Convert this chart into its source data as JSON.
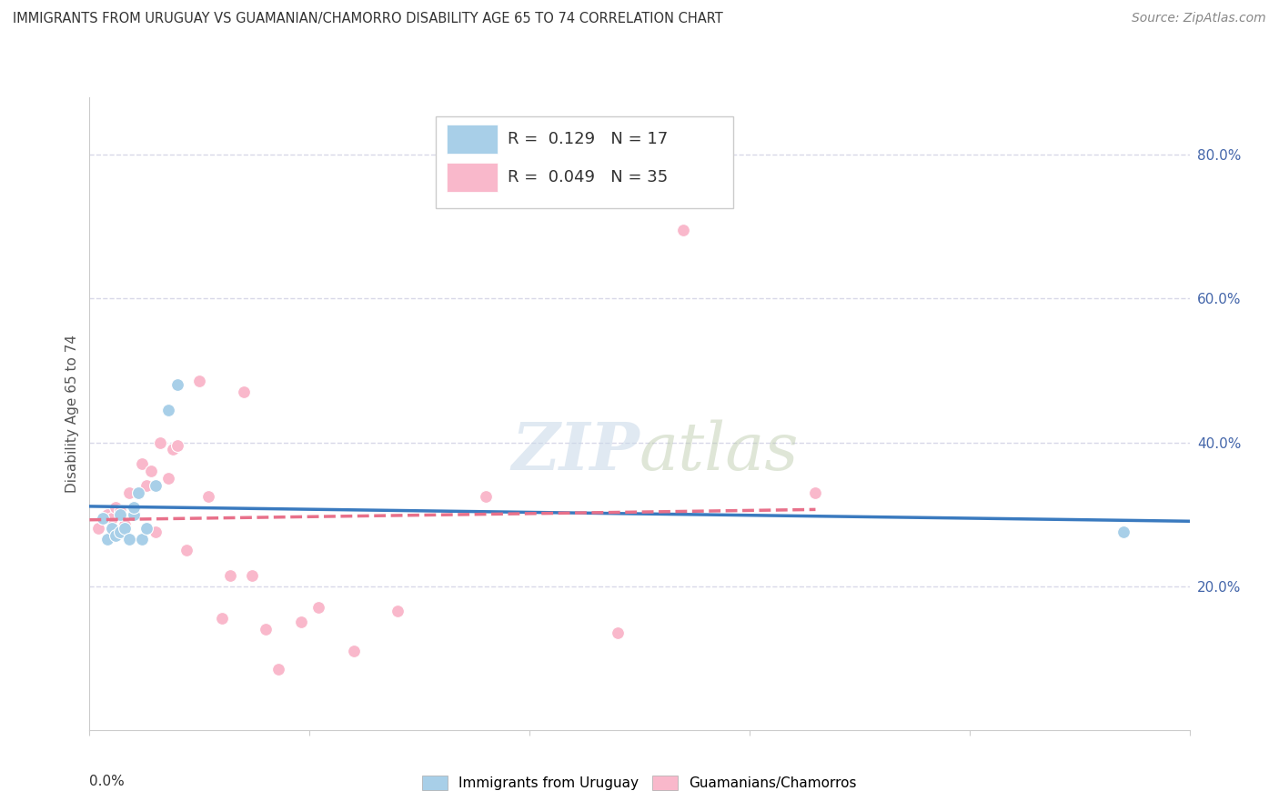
{
  "title": "IMMIGRANTS FROM URUGUAY VS GUAMANIAN/CHAMORRO DISABILITY AGE 65 TO 74 CORRELATION CHART",
  "source": "Source: ZipAtlas.com",
  "ylabel": "Disability Age 65 to 74",
  "yaxis_values": [
    0.2,
    0.4,
    0.6,
    0.8
  ],
  "xlim": [
    0.0,
    0.25
  ],
  "ylim": [
    0.0,
    0.88
  ],
  "legend_r1": "0.129",
  "legend_n1": "17",
  "legend_r2": "0.049",
  "legend_n2": "35",
  "color_uruguay": "#a8cfe8",
  "color_guamanian": "#f9b8cb",
  "line_color_uruguay": "#3a7abf",
  "line_color_guamanian": "#e8708a",
  "scatter_uruguay_x": [
    0.003,
    0.004,
    0.005,
    0.006,
    0.007,
    0.007,
    0.008,
    0.009,
    0.01,
    0.01,
    0.011,
    0.012,
    0.013,
    0.015,
    0.018,
    0.02,
    0.235
  ],
  "scatter_uruguay_y": [
    0.295,
    0.265,
    0.28,
    0.27,
    0.275,
    0.3,
    0.28,
    0.265,
    0.3,
    0.31,
    0.33,
    0.265,
    0.28,
    0.34,
    0.445,
    0.48,
    0.275
  ],
  "scatter_guamanian_x": [
    0.002,
    0.003,
    0.004,
    0.005,
    0.006,
    0.007,
    0.008,
    0.009,
    0.01,
    0.011,
    0.012,
    0.013,
    0.014,
    0.015,
    0.016,
    0.018,
    0.019,
    0.02,
    0.022,
    0.025,
    0.027,
    0.03,
    0.032,
    0.035,
    0.037,
    0.04,
    0.043,
    0.048,
    0.052,
    0.06,
    0.07,
    0.09,
    0.12,
    0.135,
    0.165
  ],
  "scatter_guamanian_y": [
    0.28,
    0.295,
    0.3,
    0.295,
    0.31,
    0.305,
    0.285,
    0.33,
    0.305,
    0.33,
    0.37,
    0.34,
    0.36,
    0.275,
    0.4,
    0.35,
    0.39,
    0.395,
    0.25,
    0.485,
    0.325,
    0.155,
    0.215,
    0.47,
    0.215,
    0.14,
    0.085,
    0.15,
    0.17,
    0.11,
    0.165,
    0.325,
    0.135,
    0.695,
    0.33
  ],
  "background_color": "#ffffff",
  "grid_color": "#d8d8e8",
  "marker_size": 100
}
